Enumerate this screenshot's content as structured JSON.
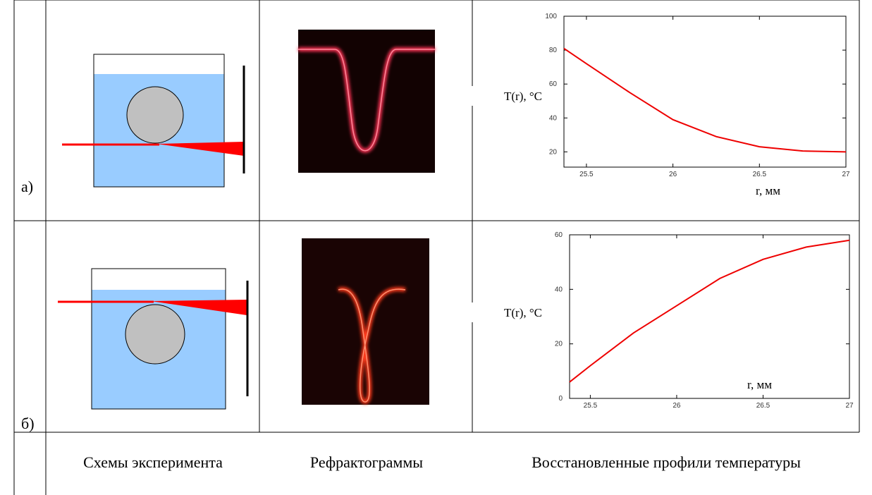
{
  "rows": [
    {
      "label": "а)"
    },
    {
      "label": "б)"
    }
  ],
  "captions": [
    "Схемы эксперимента",
    "Рефрактограммы",
    "Восстановленные профили температуры"
  ],
  "chart_data": [
    {
      "type": "line",
      "y_label": "T(r), °C",
      "x_label": "r, мм",
      "color": "#ee0000",
      "x": [
        25.37,
        25.5,
        25.75,
        26,
        26.25,
        26.5,
        26.75,
        27
      ],
      "values": [
        81,
        72,
        55,
        39,
        29,
        23,
        20.5,
        20
      ],
      "xlim": [
        25.37,
        27
      ],
      "ylim": [
        11,
        100
      ],
      "xticks": [
        25.5,
        26,
        26.5,
        27
      ],
      "yticks": [
        20,
        40,
        60,
        80,
        100
      ]
    },
    {
      "type": "line",
      "y_label": "T(r), °C",
      "x_label": "r, мм",
      "color": "#ee0000",
      "x": [
        25.38,
        25.5,
        25.75,
        26,
        26.25,
        26.5,
        26.75,
        27
      ],
      "values": [
        6,
        12,
        24,
        34,
        44,
        51,
        55.5,
        58
      ],
      "xlim": [
        25.38,
        27
      ],
      "ylim": [
        0,
        60
      ],
      "xticks": [
        25.5,
        26,
        26.5,
        27
      ],
      "yticks": [
        0,
        20,
        40,
        60
      ]
    }
  ]
}
